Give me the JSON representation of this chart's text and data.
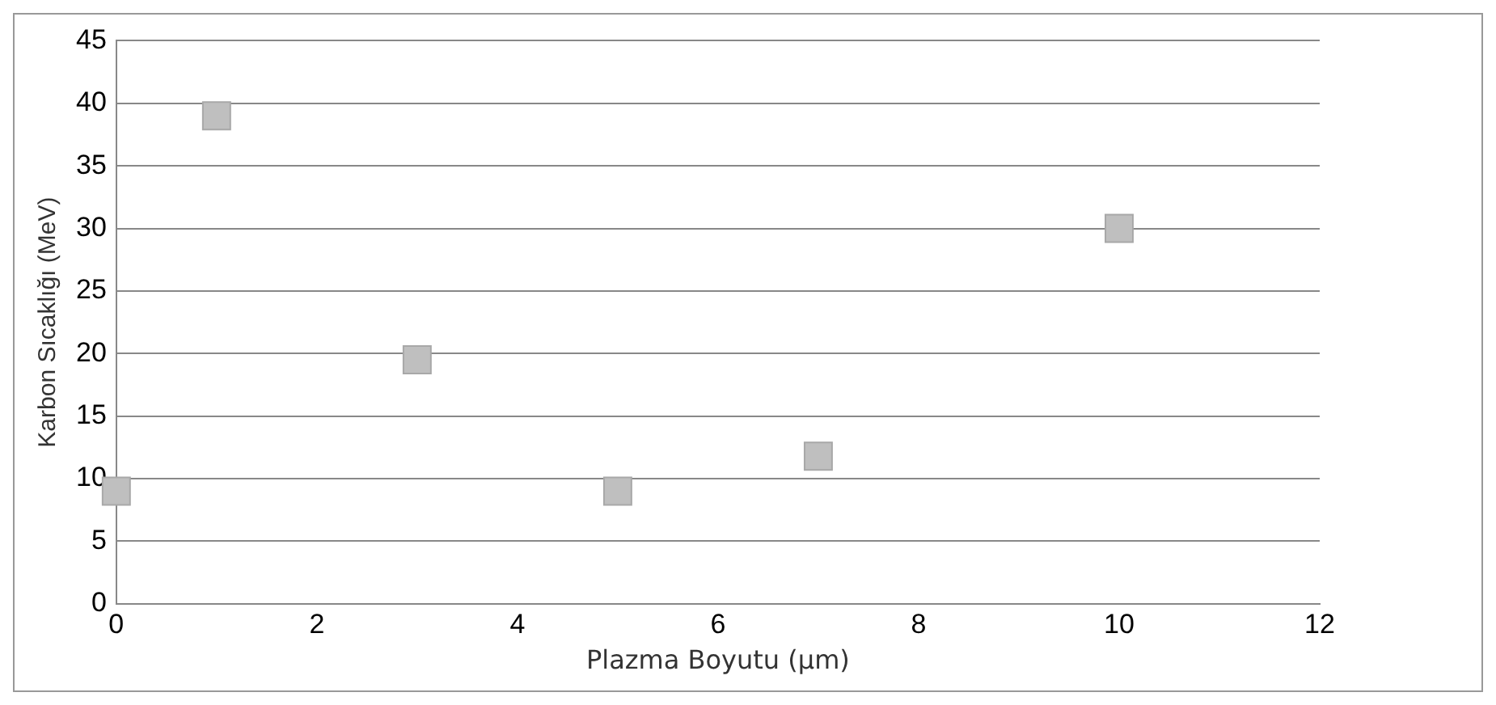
{
  "chart_data": {
    "type": "scatter",
    "xlabel": "Plazma Boyutu (μm)",
    "ylabel": "Karbon Sıcaklığı (MeV)",
    "x": [
      0,
      1,
      3,
      5,
      7,
      10
    ],
    "series": [
      {
        "color": "#bfbfbf",
        "values": [
          9,
          39,
          19.5,
          9,
          11.8,
          30
        ]
      }
    ],
    "xlim": [
      0,
      12
    ],
    "xticks": [
      0,
      2,
      4,
      6,
      8,
      10,
      12
    ],
    "ylim": [
      0,
      45
    ],
    "yticks": [
      0,
      5,
      10,
      15,
      20,
      25,
      30,
      35,
      40,
      45
    ],
    "grid": "y",
    "marker": "square",
    "legend": false
  }
}
